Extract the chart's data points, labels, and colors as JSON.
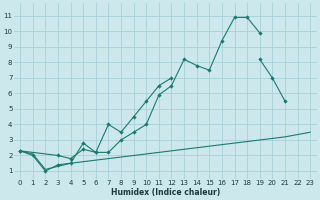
{
  "bg_color": "#cce8ed",
  "grid_color": "#a8d0d8",
  "line_color": "#1a7a6e",
  "xlabel": "Humidex (Indice chaleur)",
  "xlim": [
    -0.5,
    23.5
  ],
  "ylim": [
    0.5,
    11.8
  ],
  "xticks": [
    0,
    1,
    2,
    3,
    4,
    5,
    6,
    7,
    8,
    9,
    10,
    11,
    12,
    13,
    14,
    15,
    16,
    17,
    18,
    19,
    20,
    21,
    22,
    23
  ],
  "yticks": [
    1,
    2,
    3,
    4,
    5,
    6,
    7,
    8,
    9,
    10,
    11
  ],
  "line1_x": [
    0,
    1,
    2,
    3,
    4,
    5,
    6,
    7,
    8,
    9,
    10,
    11,
    12,
    13,
    14,
    15,
    16,
    17,
    18,
    19
  ],
  "line1_y": [
    2.3,
    2.0,
    1.0,
    1.4,
    1.5,
    2.8,
    2.2,
    2.2,
    3.0,
    3.5,
    4.0,
    5.9,
    6.5,
    8.2,
    7.8,
    7.5,
    9.4,
    10.9,
    10.9,
    9.9
  ],
  "line2_x": [
    0,
    3,
    4,
    5,
    6,
    7,
    8,
    9,
    10,
    11,
    12,
    19,
    20,
    21
  ],
  "line2_y": [
    2.3,
    2.0,
    1.8,
    2.4,
    2.2,
    4.0,
    3.5,
    4.5,
    5.5,
    6.5,
    7.0,
    8.2,
    7.0,
    5.5
  ],
  "line3_x": [
    0,
    1,
    2,
    3,
    4,
    5,
    6,
    7,
    8,
    9,
    10,
    11,
    12,
    13,
    14,
    15,
    16,
    17,
    18,
    19,
    20,
    21,
    22,
    23
  ],
  "line3_y": [
    2.3,
    2.1,
    1.1,
    1.3,
    1.5,
    1.6,
    1.7,
    1.8,
    1.9,
    2.0,
    2.1,
    2.2,
    2.3,
    2.4,
    2.5,
    2.6,
    2.7,
    2.8,
    2.9,
    3.0,
    3.1,
    3.2,
    3.35,
    3.5
  ]
}
